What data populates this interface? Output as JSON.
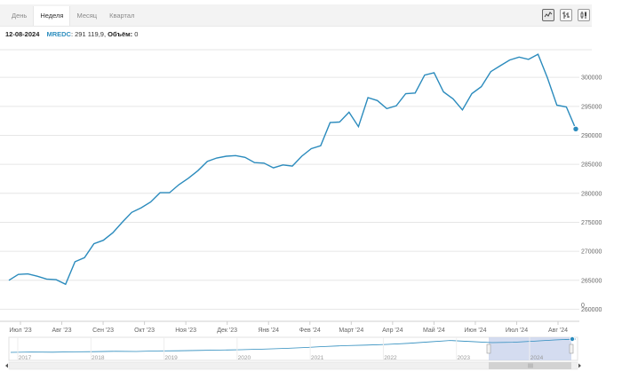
{
  "tabs": [
    "День",
    "Неделя",
    "Месяц",
    "Квартал"
  ],
  "active_tab": 1,
  "toolbar": {
    "icons": [
      "line-chart-icon",
      "ohlc-chart-icon",
      "candlestick-chart-icon"
    ]
  },
  "info": {
    "date": "12-08-2024",
    "symbol": "MREDC",
    "value": "291 119,9",
    "volume_label": "Объём:",
    "volume_value": "0"
  },
  "colors": {
    "line": "#2b8bbd",
    "grid": "#e6e6e6",
    "navigator_fill": "#c9d3ec"
  },
  "chart_data": {
    "type": "line",
    "ylim": [
      257000,
      306000
    ],
    "y_ticks": [
      260000,
      265000,
      270000,
      275000,
      280000,
      285000,
      290000,
      295000,
      300000
    ],
    "x_tick_labels": [
      "Июл '23",
      "Авг '23",
      "Сен '23",
      "Окт '23",
      "Ноя '23",
      "Дек '23",
      "Янв '24",
      "Фев '24",
      "Март '24",
      "Апр '24",
      "Май '24",
      "Июн '24",
      "Июл '24",
      "Авг '24"
    ],
    "y_zero_label": "0",
    "series": [
      {
        "values": [
          265000,
          266000,
          266100,
          265700,
          265200,
          265100,
          264300,
          268200,
          268900,
          271300,
          271900,
          273200,
          275000,
          276700,
          277500,
          278500,
          280100,
          280100,
          281500,
          282600,
          283900,
          285500,
          286100,
          286400,
          286500,
          286200,
          285300,
          285200,
          284400,
          284900,
          284700,
          286400,
          287700,
          288200,
          292200,
          292300,
          294000,
          291500,
          296500,
          296000,
          294600,
          295100,
          297200,
          297300,
          300400,
          300800,
          297500,
          296300,
          294400,
          297200,
          298400,
          301000,
          302000,
          303000,
          303500,
          303100,
          304000,
          299900,
          295200,
          294900,
          291100
        ]
      }
    ],
    "navigator": {
      "year_labels": [
        "2017",
        "2018",
        "2019",
        "2020",
        "2021",
        "2022",
        "2023",
        "2024"
      ]
    }
  }
}
